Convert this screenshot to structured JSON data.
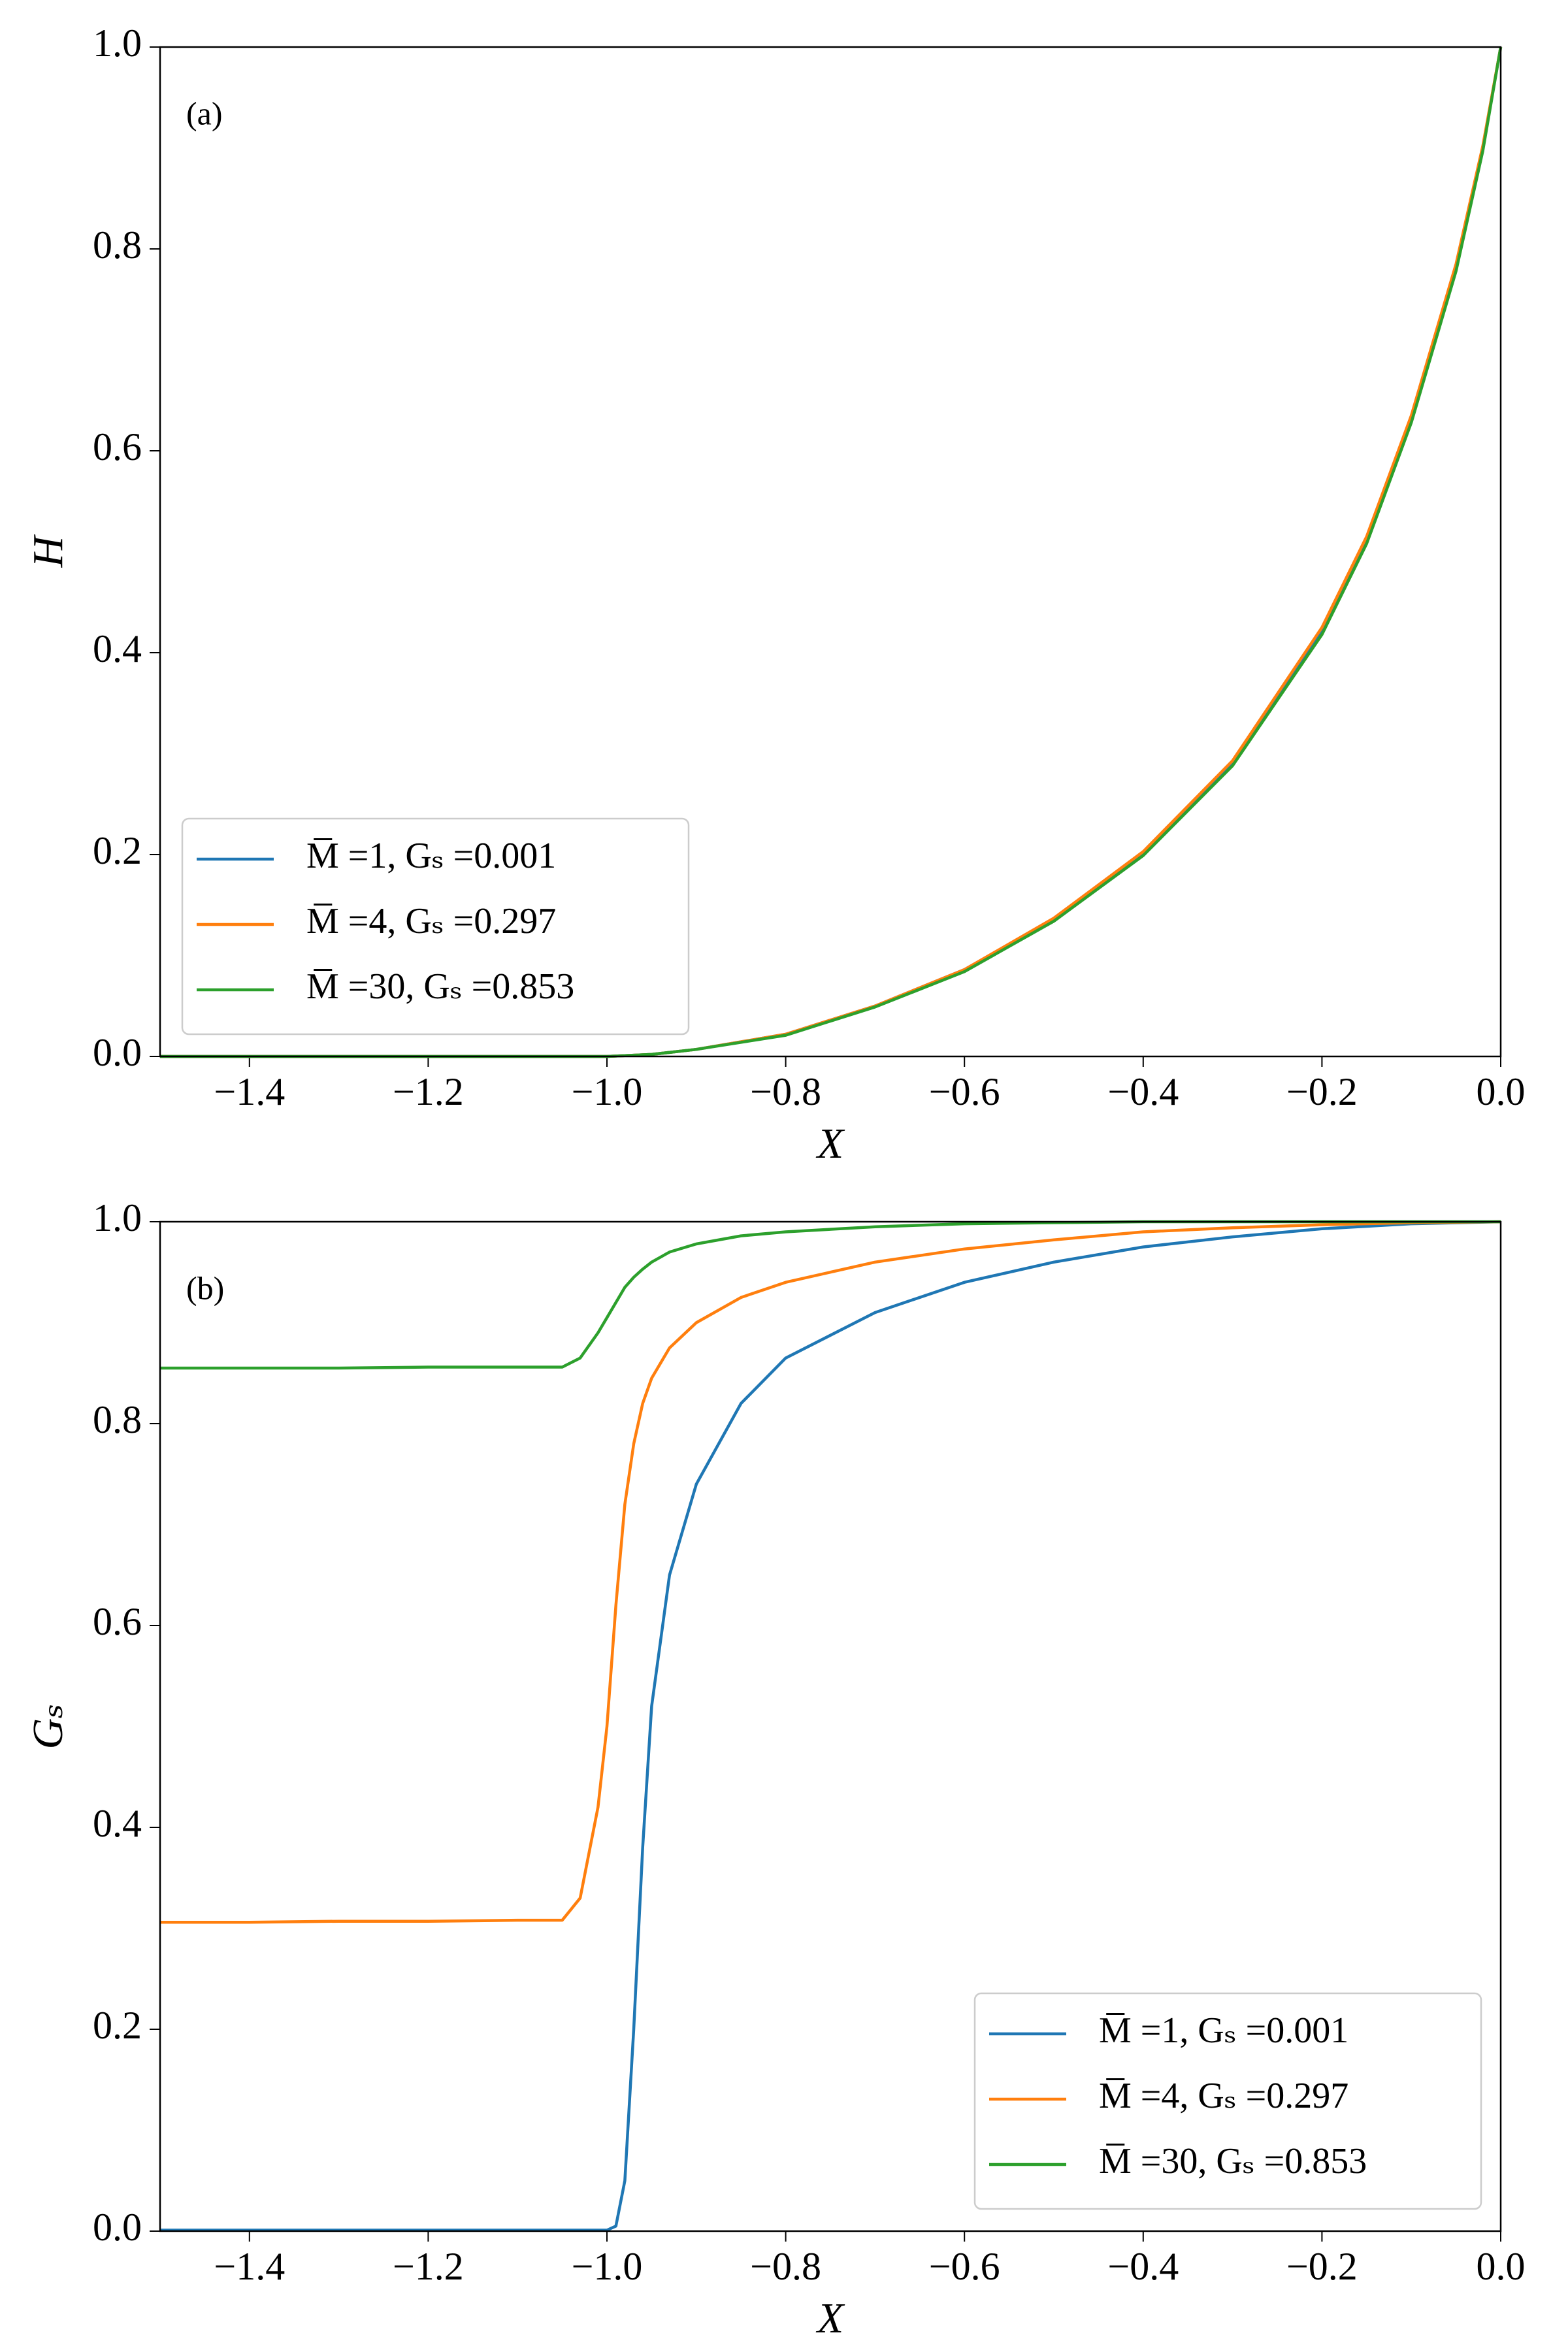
{
  "chart_data": [
    {
      "type": "line",
      "annotation": "(a)",
      "xlabel": "X",
      "ylabel": "H",
      "legend": "lower left",
      "xlim": [
        -1.5,
        0
      ],
      "ylim": [
        0,
        1
      ],
      "xticks": [
        {
          "value": -1.4,
          "label": "−1.4"
        },
        {
          "value": -1.2,
          "label": "−1.2"
        },
        {
          "value": -1.0,
          "label": "−1.0"
        },
        {
          "value": -0.8,
          "label": "−0.8"
        },
        {
          "value": -0.6,
          "label": "−0.6"
        },
        {
          "value": -0.4,
          "label": "−0.4"
        },
        {
          "value": -0.2,
          "label": "−0.2"
        },
        {
          "value": 0,
          "label": "0.0"
        }
      ],
      "yticks": [
        {
          "value": 0,
          "label": "0.0"
        },
        0.2,
        0.4,
        0.6,
        0.8,
        {
          "value": 1,
          "label": "1.0"
        }
      ],
      "x": [
        -1.5,
        -1.4,
        -1.3,
        -1.2,
        -1.1,
        -1.0,
        -0.95,
        -0.9,
        -0.8,
        -0.7,
        -0.6,
        -0.5,
        -0.4,
        -0.3,
        -0.2,
        -0.15,
        -0.1,
        -0.05,
        -0.02,
        0
      ],
      "series": [
        {
          "name": "M̅ =1, Gₛ =0.001",
          "color": "#1f77b4",
          "values": [
            0,
            0,
            0,
            0,
            0,
            0,
            0.002,
            0.007,
            0.022,
            0.05,
            0.086,
            0.136,
            0.202,
            0.292,
            0.423,
            0.513,
            0.633,
            0.783,
            0.9,
            1.0
          ]
        },
        {
          "name": "M̅ =4, Gₛ =0.297",
          "color": "#ff7f0e",
          "values": [
            0,
            0,
            0,
            0,
            0,
            0,
            0.002,
            0.007,
            0.022,
            0.05,
            0.086,
            0.137,
            0.203,
            0.293,
            0.425,
            0.515,
            0.635,
            0.785,
            0.902,
            1.0
          ]
        },
        {
          "name": "M̅ =30, Gₛ =0.853",
          "color": "#2ca02c",
          "values": [
            0,
            0,
            0,
            0,
            0,
            0,
            0.002,
            0.007,
            0.021,
            0.049,
            0.084,
            0.134,
            0.199,
            0.288,
            0.418,
            0.508,
            0.628,
            0.778,
            0.897,
            1.0
          ]
        }
      ]
    },
    {
      "type": "line",
      "annotation": "(b)",
      "xlabel": "X",
      "ylabel": "Gₛ",
      "legend": "lower right",
      "xlim": [
        -1.5,
        0
      ],
      "ylim": [
        0,
        1
      ],
      "xticks": [
        {
          "value": -1.4,
          "label": "−1.4"
        },
        {
          "value": -1.2,
          "label": "−1.2"
        },
        {
          "value": -1.0,
          "label": "−1.0"
        },
        {
          "value": -0.8,
          "label": "−0.8"
        },
        {
          "value": -0.6,
          "label": "−0.6"
        },
        {
          "value": -0.4,
          "label": "−0.4"
        },
        {
          "value": -0.2,
          "label": "−0.2"
        },
        {
          "value": 0,
          "label": "0.0"
        }
      ],
      "yticks": [
        {
          "value": 0,
          "label": "0.0"
        },
        0.2,
        0.4,
        0.6,
        0.8,
        {
          "value": 1,
          "label": "1.0"
        }
      ],
      "x": [
        -1.5,
        -1.4,
        -1.3,
        -1.2,
        -1.1,
        -1.05,
        -1.03,
        -1.01,
        -1.0,
        -0.99,
        -0.98,
        -0.97,
        -0.96,
        -0.95,
        -0.93,
        -0.9,
        -0.85,
        -0.8,
        -0.7,
        -0.6,
        -0.5,
        -0.4,
        -0.3,
        -0.2,
        -0.1,
        0
      ],
      "series": [
        {
          "name": "M̅ =1, Gₛ =0.001",
          "color": "#1f77b4",
          "values": [
            0.001,
            0.001,
            0.001,
            0.001,
            0.001,
            0.001,
            0.001,
            0.001,
            0.001,
            0.005,
            0.05,
            0.2,
            0.38,
            0.52,
            0.65,
            0.74,
            0.82,
            0.865,
            0.91,
            0.94,
            0.96,
            0.975,
            0.985,
            0.993,
            0.998,
            1.0
          ]
        },
        {
          "name": "M̅ =4, Gₛ =0.297",
          "color": "#ff7f0e",
          "values": [
            0.306,
            0.306,
            0.307,
            0.307,
            0.308,
            0.308,
            0.33,
            0.42,
            0.5,
            0.62,
            0.72,
            0.78,
            0.82,
            0.845,
            0.875,
            0.9,
            0.925,
            0.94,
            0.96,
            0.973,
            0.982,
            0.99,
            0.994,
            0.997,
            0.999,
            1.0
          ]
        },
        {
          "name": "M̅ =30, Gₛ =0.853",
          "color": "#2ca02c",
          "values": [
            0.855,
            0.855,
            0.855,
            0.856,
            0.856,
            0.856,
            0.865,
            0.89,
            0.905,
            0.92,
            0.935,
            0.945,
            0.953,
            0.96,
            0.97,
            0.978,
            0.986,
            0.99,
            0.995,
            0.998,
            0.999,
            1.0,
            1.0,
            1.0,
            1.0,
            1.0
          ]
        }
      ]
    }
  ]
}
